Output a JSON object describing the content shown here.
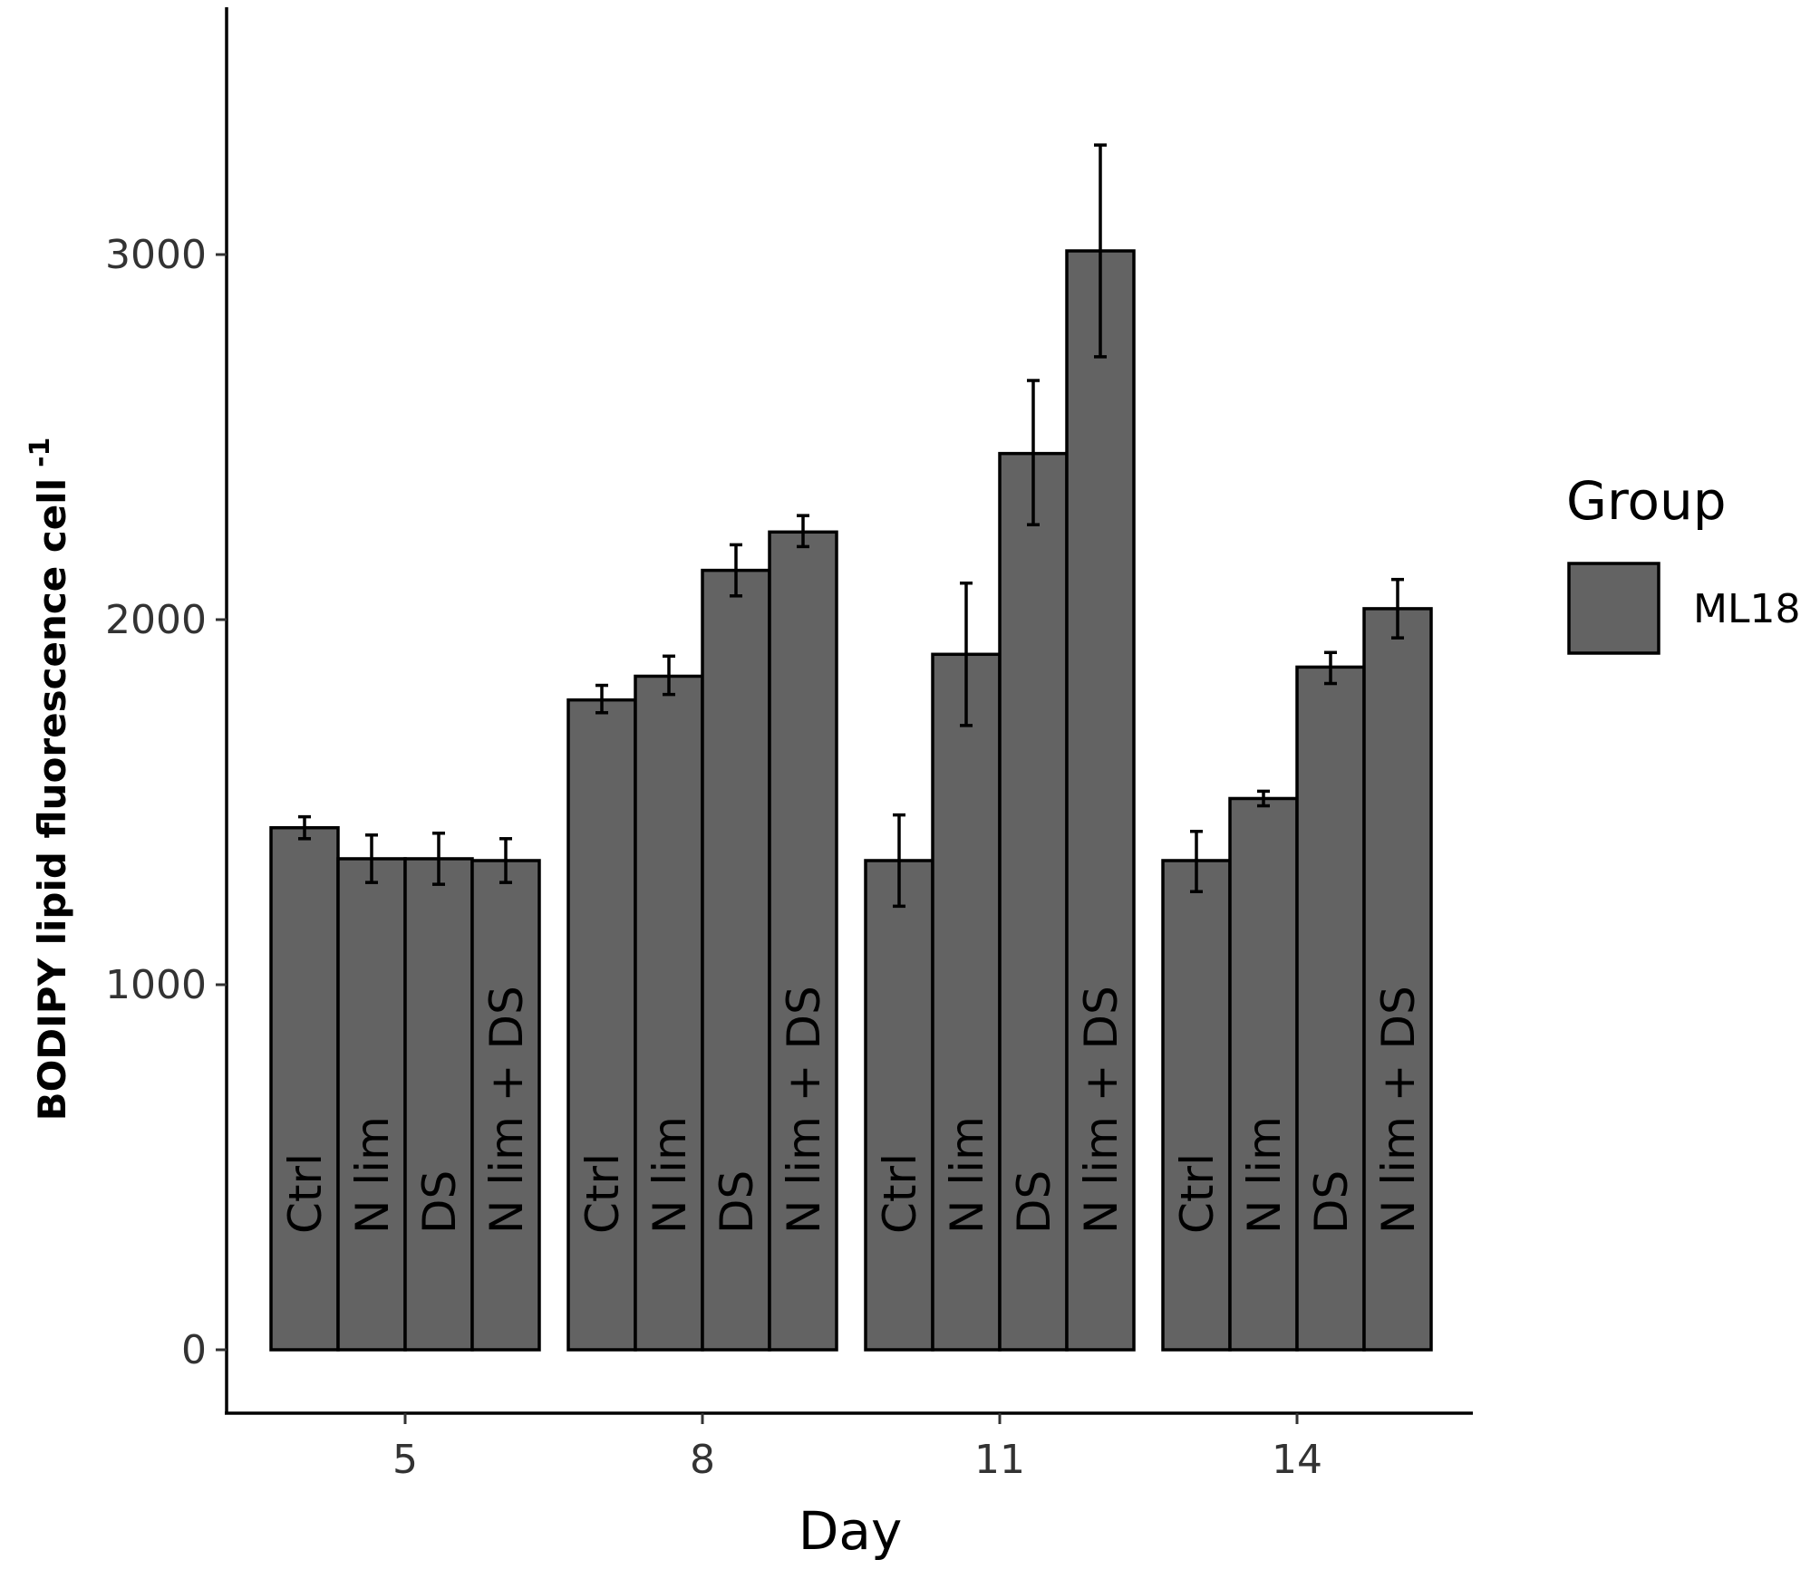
{
  "chart_data": {
    "type": "bar",
    "xlabel": "Day",
    "ylabel": "BODIPY lipid fluorescence cell",
    "ylabel_superscript": "-1",
    "categories": [
      "5",
      "8",
      "11",
      "14"
    ],
    "groups": [
      "Ctrl",
      "N lim",
      "DS",
      "N lim + DS"
    ],
    "series": [
      {
        "name": "ML18",
        "values": [
          [
            1430,
            1345,
            1345,
            1340
          ],
          [
            1780,
            1845,
            2135,
            2240
          ],
          [
            1340,
            1905,
            2455,
            3010
          ],
          [
            1340,
            1510,
            1870,
            2030
          ]
        ]
      }
    ],
    "error_bars": [
      [
        [
          1400,
          1460
        ],
        [
          1280,
          1410
        ],
        [
          1275,
          1415
        ],
        [
          1280,
          1400
        ]
      ],
      [
        [
          1745,
          1820
        ],
        [
          1795,
          1900
        ],
        [
          2065,
          2205
        ],
        [
          2200,
          2285
        ]
      ],
      [
        [
          1215,
          1465
        ],
        [
          1710,
          2100
        ],
        [
          2260,
          2655
        ],
        [
          2720,
          3300
        ]
      ],
      [
        [
          1255,
          1420
        ],
        [
          1490,
          1530
        ],
        [
          1825,
          1910
        ],
        [
          1950,
          2110
        ]
      ]
    ],
    "yticks": [
      0,
      1000,
      2000,
      3000
    ],
    "ylim": [
      -180,
      3500
    ],
    "legend": {
      "title": "Group",
      "entries": [
        "ML18"
      ],
      "position": "right"
    },
    "colors": {
      "bar_fill": "#636363",
      "bar_stroke": "#000000"
    },
    "grid": false
  }
}
